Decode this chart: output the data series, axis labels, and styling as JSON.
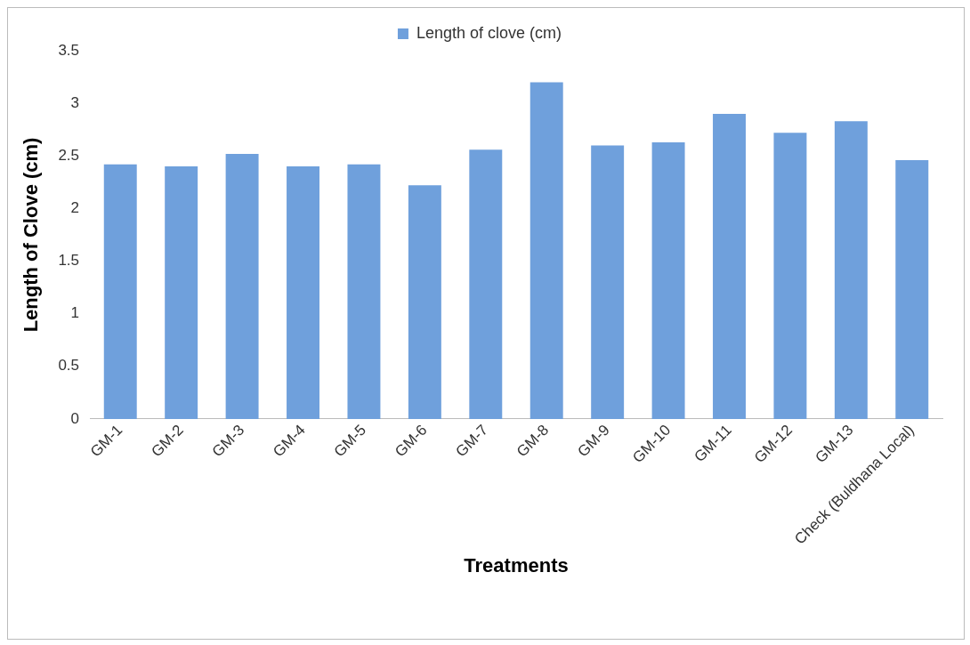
{
  "chart_data": {
    "type": "bar",
    "xlabel": "Treatments",
    "ylabel": "Length of Clove (cm)",
    "categories": [
      "GM-1",
      "GM-2",
      "GM-3",
      "GM-4",
      "GM-5",
      "GM-6",
      "GM-7",
      "GM-8",
      "GM-9",
      "GM-10",
      "GM-11",
      "GM-12",
      "GM-13",
      "Check (Buldhana Local)"
    ],
    "series": [
      {
        "name": "Length of clove (cm)",
        "color": "#6fa0dc",
        "values": [
          2.42,
          2.4,
          2.52,
          2.4,
          2.42,
          2.22,
          2.56,
          3.2,
          2.6,
          2.63,
          2.9,
          2.72,
          2.83,
          2.46
        ]
      }
    ],
    "ylim": [
      0,
      3.5
    ],
    "yticks": [
      0,
      0.5,
      1,
      1.5,
      2,
      2.5,
      3,
      3.5
    ],
    "grid": false,
    "legend": "top"
  }
}
